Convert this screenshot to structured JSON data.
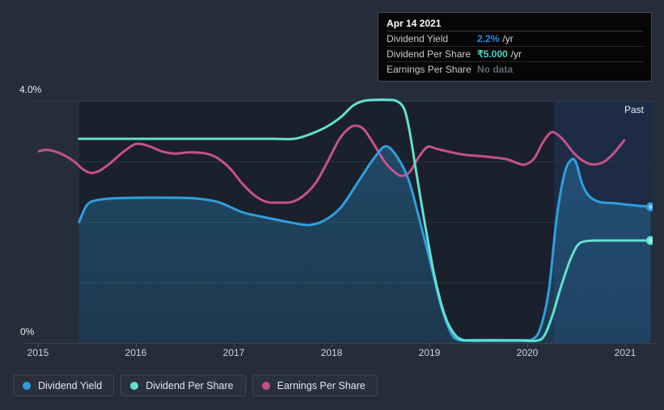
{
  "page": {
    "background": "#262d3a",
    "plot_background": "#1a202c",
    "past_band_color": "rgba(59,130,246,0.12)"
  },
  "y_axis": {
    "top_label": "4.0%",
    "bottom_label": "0%"
  },
  "x_axis": {
    "ticks": [
      2015,
      2016,
      2017,
      2018,
      2019,
      2020,
      2021
    ]
  },
  "past_label": "Past",
  "tooltip": {
    "date": "Apr 14 2021",
    "rows": [
      {
        "label": "Dividend Yield",
        "value": "2.2%",
        "suffix": "/yr",
        "value_color": "#1f8fe8"
      },
      {
        "label": "Dividend Per Share",
        "value": "₹5.000",
        "suffix": "/yr",
        "value_color": "#49d7c6"
      },
      {
        "label": "Earnings Per Share",
        "value": "No data",
        "suffix": "",
        "value_color": "#5e6871"
      }
    ]
  },
  "legend": {
    "items": [
      {
        "label": "Dividend Yield",
        "color": "#2e9fe0"
      },
      {
        "label": "Dividend Per Share",
        "color": "#63e0ce"
      },
      {
        "label": "Earnings Per Share",
        "color": "#c9508d"
      }
    ]
  },
  "chart_data": {
    "type": "line",
    "title": "Dividend history with past region highlight",
    "x_range": [
      2015,
      2021.3
    ],
    "x_ticks": [
      2015,
      2016,
      2017,
      2018,
      2019,
      2020,
      2021
    ],
    "y_axis_percent": {
      "min": 0,
      "max": 4,
      "tick_labels": [
        "0%",
        "4.0%"
      ],
      "applies_to": "Dividend Yield"
    },
    "past_region_start_year": 2020.27,
    "grid": true,
    "legend_position": "bottom-left",
    "series": [
      {
        "id": "eps",
        "name": "Earnings Per Share",
        "color": "#c6518e",
        "unit": "relative (no axis shown)",
        "end_dot": false,
        "points": [
          [
            2015.01,
            3.17
          ],
          [
            2015.1,
            3.19
          ],
          [
            2015.23,
            3.13
          ],
          [
            2015.36,
            3.01
          ],
          [
            2015.46,
            2.87
          ],
          [
            2015.54,
            2.81
          ],
          [
            2015.62,
            2.84
          ],
          [
            2015.73,
            2.96
          ],
          [
            2015.85,
            3.13
          ],
          [
            2015.97,
            3.27
          ],
          [
            2016.04,
            3.29
          ],
          [
            2016.14,
            3.25
          ],
          [
            2016.26,
            3.17
          ],
          [
            2016.39,
            3.13
          ],
          [
            2016.55,
            3.15
          ],
          [
            2016.72,
            3.13
          ],
          [
            2016.84,
            3.05
          ],
          [
            2016.97,
            2.87
          ],
          [
            2017.09,
            2.63
          ],
          [
            2017.22,
            2.43
          ],
          [
            2017.34,
            2.33
          ],
          [
            2017.46,
            2.32
          ],
          [
            2017.59,
            2.33
          ],
          [
            2017.71,
            2.43
          ],
          [
            2017.84,
            2.65
          ],
          [
            2017.96,
            3.0
          ],
          [
            2018.08,
            3.37
          ],
          [
            2018.18,
            3.55
          ],
          [
            2018.25,
            3.59
          ],
          [
            2018.33,
            3.53
          ],
          [
            2018.43,
            3.29
          ],
          [
            2018.54,
            3.0
          ],
          [
            2018.64,
            2.83
          ],
          [
            2018.72,
            2.76
          ],
          [
            2018.8,
            2.83
          ],
          [
            2018.89,
            3.07
          ],
          [
            2018.98,
            3.24
          ],
          [
            2019.07,
            3.21
          ],
          [
            2019.2,
            3.16
          ],
          [
            2019.36,
            3.11
          ],
          [
            2019.57,
            3.08
          ],
          [
            2019.78,
            3.04
          ],
          [
            2019.9,
            2.97
          ],
          [
            2019.98,
            2.95
          ],
          [
            2020.07,
            3.05
          ],
          [
            2020.15,
            3.29
          ],
          [
            2020.22,
            3.45
          ],
          [
            2020.27,
            3.48
          ],
          [
            2020.36,
            3.37
          ],
          [
            2020.48,
            3.13
          ],
          [
            2020.58,
            3.0
          ],
          [
            2020.67,
            2.95
          ],
          [
            2020.78,
            2.99
          ],
          [
            2020.88,
            3.13
          ],
          [
            2020.99,
            3.35
          ]
        ]
      },
      {
        "id": "yield",
        "name": "Dividend Yield",
        "color": "#2e9fe0",
        "unit": "%",
        "area": true,
        "end_dot": true,
        "end_value_label": "2.2%",
        "points": [
          [
            2015.42,
            2.0
          ],
          [
            2015.5,
            2.28
          ],
          [
            2015.6,
            2.36
          ],
          [
            2015.77,
            2.39
          ],
          [
            2016.02,
            2.4
          ],
          [
            2016.35,
            2.4
          ],
          [
            2016.6,
            2.39
          ],
          [
            2016.84,
            2.33
          ],
          [
            2017.09,
            2.16
          ],
          [
            2017.34,
            2.07
          ],
          [
            2017.59,
            1.99
          ],
          [
            2017.77,
            1.95
          ],
          [
            2017.93,
            2.03
          ],
          [
            2018.1,
            2.25
          ],
          [
            2018.29,
            2.71
          ],
          [
            2018.45,
            3.09
          ],
          [
            2018.56,
            3.25
          ],
          [
            2018.68,
            3.05
          ],
          [
            2018.79,
            2.68
          ],
          [
            2018.89,
            2.09
          ],
          [
            2019.01,
            1.33
          ],
          [
            2019.12,
            0.61
          ],
          [
            2019.22,
            0.17
          ],
          [
            2019.3,
            0.05
          ],
          [
            2019.45,
            0.05
          ],
          [
            2019.7,
            0.05
          ],
          [
            2019.97,
            0.05
          ],
          [
            2020.05,
            0.06
          ],
          [
            2020.13,
            0.23
          ],
          [
            2020.22,
            0.87
          ],
          [
            2020.3,
            2.07
          ],
          [
            2020.38,
            2.8
          ],
          [
            2020.45,
            3.03
          ],
          [
            2020.5,
            2.97
          ],
          [
            2020.56,
            2.63
          ],
          [
            2020.63,
            2.43
          ],
          [
            2020.74,
            2.33
          ],
          [
            2020.89,
            2.31
          ],
          [
            2021.06,
            2.28
          ],
          [
            2021.26,
            2.25
          ]
        ]
      },
      {
        "id": "dps",
        "name": "Dividend Per Share",
        "color": "#63e0ce",
        "unit": "INR/yr",
        "end_dot": true,
        "end_value_label": "₹5.000",
        "points": [
          [
            2015.42,
            10.0
          ],
          [
            2015.8,
            10.0
          ],
          [
            2016.3,
            10.0
          ],
          [
            2016.9,
            10.0
          ],
          [
            2017.4,
            10.0
          ],
          [
            2017.62,
            10.0
          ],
          [
            2017.79,
            10.25
          ],
          [
            2017.95,
            10.6
          ],
          [
            2018.1,
            11.1
          ],
          [
            2018.22,
            11.65
          ],
          [
            2018.33,
            11.88
          ],
          [
            2018.45,
            11.93
          ],
          [
            2018.58,
            11.93
          ],
          [
            2018.66,
            11.88
          ],
          [
            2018.74,
            11.5
          ],
          [
            2018.8,
            10.3
          ],
          [
            2018.87,
            8.2
          ],
          [
            2018.96,
            5.6
          ],
          [
            2019.06,
            3.0
          ],
          [
            2019.16,
            1.2
          ],
          [
            2019.25,
            0.35
          ],
          [
            2019.33,
            0.05
          ],
          [
            2019.42,
            0.0
          ],
          [
            2019.65,
            0.0
          ],
          [
            2019.9,
            0.0
          ],
          [
            2020.1,
            0.0
          ],
          [
            2020.18,
            0.3
          ],
          [
            2020.26,
            1.3
          ],
          [
            2020.34,
            2.6
          ],
          [
            2020.43,
            3.9
          ],
          [
            2020.51,
            4.7
          ],
          [
            2020.6,
            4.93
          ],
          [
            2020.8,
            4.96
          ],
          [
            2021.0,
            4.96
          ],
          [
            2021.26,
            4.96
          ]
        ]
      }
    ]
  }
}
